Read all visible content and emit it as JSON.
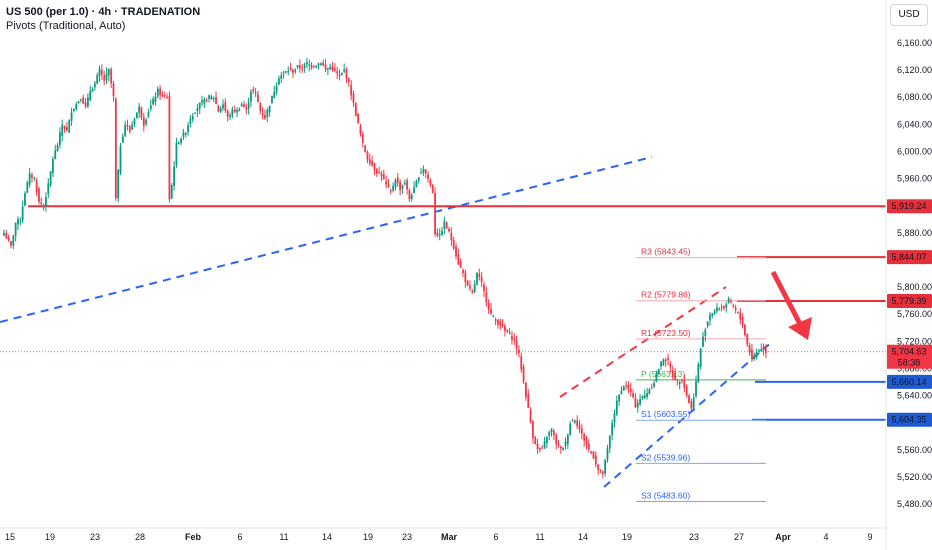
{
  "header": {
    "symbol": "US 500 (per 1.0) · 4h · TRADENATION",
    "indicator": "Pivots (Traditional, Auto)",
    "currency_button": "USD"
  },
  "colors": {
    "up": "#089981",
    "down": "#f23645",
    "red_line": "#e5303c",
    "blue_line": "#2962ff",
    "blue_label": "#1e5ad2",
    "red_label": "#e5303c",
    "pivot_red": "#f7a9b0",
    "pivot_green": "#4caf50",
    "pivot_blue": "#7fa7f0",
    "arrow": "#f23645"
  },
  "chart_data": {
    "type": "candlestick",
    "y_axis": {
      "ticks": [
        "6,160.00",
        "6,120.00",
        "6,080.00",
        "6,040.00",
        "6,000.00",
        "5,960.00",
        "5,920.00",
        "5,880.00",
        "5,840.00",
        "5,800.00",
        "5,760.00",
        "5,720.00",
        "5,680.00",
        "5,640.00",
        "5,600.00",
        "5,560.00",
        "5,520.00",
        "5,480.00"
      ],
      "tick_values": [
        6160,
        6120,
        6080,
        6040,
        6000,
        5960,
        5920,
        5880,
        5840,
        5800,
        5760,
        5720,
        5680,
        5640,
        5600,
        5560,
        5520,
        5480
      ],
      "range": [
        5455,
        6188
      ]
    },
    "x_axis": {
      "ticks": [
        "15",
        "19",
        "23",
        "28",
        "Feb",
        "6",
        "11",
        "14",
        "19",
        "23",
        "Mar",
        "6",
        "11",
        "14",
        "19",
        "23",
        "27",
        "Apr",
        "4",
        "9"
      ],
      "tick_bold": [
        false,
        false,
        false,
        false,
        true,
        false,
        false,
        false,
        false,
        false,
        true,
        false,
        false,
        false,
        false,
        false,
        false,
        true,
        false,
        false
      ]
    },
    "last_price": {
      "value": "5,704.63",
      "countdown": "58:38",
      "numeric": 5704.63
    },
    "levels": [
      {
        "label": "5,919.24",
        "value": 5919.24,
        "style": "red"
      },
      {
        "label": "5,844.07",
        "value": 5844.07,
        "style": "red"
      },
      {
        "label": "5,779.39",
        "value": 5779.39,
        "style": "red"
      },
      {
        "label": "5,660.14",
        "value": 5660.14,
        "style": "blue"
      },
      {
        "label": "5,604.35",
        "value": 5604.35,
        "style": "blue"
      }
    ],
    "pivots": [
      {
        "name": "R3",
        "text": "R3 (5843.45)",
        "value": 5843.45,
        "color": "red"
      },
      {
        "name": "R2",
        "text": "R2 (5779.86)",
        "value": 5779.86,
        "color": "red"
      },
      {
        "name": "R1",
        "text": "R1 (5723.50)",
        "value": 5723.5,
        "color": "red"
      },
      {
        "name": "P",
        "text": "P (5663.13)",
        "value": 5663.13,
        "color": "green"
      },
      {
        "name": "S1",
        "text": "S1 (5603.55)",
        "value": 5603.55,
        "color": "blue"
      },
      {
        "name": "S2",
        "text": "S2 (5539.96)",
        "value": 5539.96,
        "color": "blue"
      },
      {
        "name": "S3",
        "text": "S3 (5483.60)",
        "value": 5483.6,
        "color": "blue"
      }
    ],
    "trend_lines": [
      {
        "name": "long-dashed-support",
        "color": "blue",
        "dashed": true
      },
      {
        "name": "channel-lower",
        "color": "blue",
        "dashed": true
      },
      {
        "name": "channel-upper",
        "color": "red",
        "dashed": true
      }
    ],
    "arrow": {
      "direction": "down"
    },
    "close_path": [
      [
        0,
        5880
      ],
      [
        3,
        5860
      ],
      [
        5,
        5895
      ],
      [
        7,
        5900
      ],
      [
        9,
        5940
      ],
      [
        11,
        5965
      ],
      [
        13,
        5960
      ],
      [
        15,
        5925
      ],
      [
        17,
        5920
      ],
      [
        19,
        5950
      ],
      [
        21,
        5990
      ],
      [
        23,
        6010
      ],
      [
        25,
        6040
      ],
      [
        27,
        6030
      ],
      [
        29,
        6060
      ],
      [
        31,
        6070
      ],
      [
        33,
        6080
      ],
      [
        35,
        6065
      ],
      [
        37,
        6090
      ],
      [
        39,
        6100
      ],
      [
        41,
        6120
      ],
      [
        43,
        6105
      ],
      [
        45,
        6120
      ],
      [
        47,
        6080
      ],
      [
        48,
        5930
      ],
      [
        50,
        6010
      ],
      [
        52,
        6040
      ],
      [
        54,
        6030
      ],
      [
        56,
        6050
      ],
      [
        58,
        6065
      ],
      [
        60,
        6040
      ],
      [
        62,
        6060
      ],
      [
        64,
        6075
      ],
      [
        66,
        6090
      ],
      [
        68,
        6080
      ],
      [
        70,
        6080
      ],
      [
        71,
        5930
      ],
      [
        72,
        5950
      ],
      [
        74,
        6010
      ],
      [
        76,
        6020
      ],
      [
        78,
        6030
      ],
      [
        80,
        6050
      ],
      [
        82,
        6060
      ],
      [
        84,
        6070
      ],
      [
        86,
        6075
      ],
      [
        88,
        6080
      ],
      [
        90,
        6080
      ],
      [
        92,
        6060
      ],
      [
        94,
        6070
      ],
      [
        96,
        6050
      ],
      [
        98,
        6060
      ],
      [
        100,
        6060
      ],
      [
        102,
        6070
      ],
      [
        104,
        6060
      ],
      [
        106,
        6090
      ],
      [
        108,
        6085
      ],
      [
        110,
        6060
      ],
      [
        112,
        6050
      ],
      [
        114,
        6070
      ],
      [
        116,
        6090
      ],
      [
        118,
        6110
      ],
      [
        120,
        6115
      ],
      [
        122,
        6120
      ],
      [
        124,
        6118
      ],
      [
        126,
        6125
      ],
      [
        128,
        6123
      ],
      [
        130,
        6130
      ],
      [
        132,
        6126
      ],
      [
        134,
        6128
      ],
      [
        136,
        6132
      ],
      [
        138,
        6120
      ],
      [
        140,
        6125
      ],
      [
        142,
        6118
      ],
      [
        144,
        6110
      ],
      [
        146,
        6120
      ],
      [
        148,
        6100
      ],
      [
        150,
        6070
      ],
      [
        152,
        6040
      ],
      [
        154,
        6010
      ],
      [
        156,
        5990
      ],
      [
        158,
        5980
      ],
      [
        160,
        5970
      ],
      [
        162,
        5965
      ],
      [
        164,
        5950
      ],
      [
        166,
        5940
      ],
      [
        168,
        5960
      ],
      [
        170,
        5945
      ],
      [
        172,
        5955
      ],
      [
        174,
        5930
      ],
      [
        176,
        5945
      ],
      [
        178,
        5965
      ],
      [
        180,
        5975
      ],
      [
        182,
        5960
      ],
      [
        184,
        5940
      ],
      [
        185,
        5880
      ],
      [
        187,
        5875
      ],
      [
        189,
        5895
      ],
      [
        191,
        5880
      ],
      [
        193,
        5860
      ],
      [
        195,
        5835
      ],
      [
        197,
        5820
      ],
      [
        199,
        5800
      ],
      [
        201,
        5790
      ],
      [
        203,
        5820
      ],
      [
        205,
        5805
      ],
      [
        207,
        5780
      ],
      [
        209,
        5760
      ],
      [
        211,
        5750
      ],
      [
        213,
        5745
      ],
      [
        215,
        5735
      ],
      [
        217,
        5730
      ],
      [
        219,
        5720
      ],
      [
        221,
        5700
      ],
      [
        223,
        5660
      ],
      [
        225,
        5620
      ],
      [
        227,
        5580
      ],
      [
        229,
        5560
      ],
      [
        231,
        5560
      ],
      [
        233,
        5580
      ],
      [
        235,
        5590
      ],
      [
        237,
        5570
      ],
      [
        239,
        5560
      ],
      [
        241,
        5570
      ],
      [
        243,
        5600
      ],
      [
        245,
        5605
      ],
      [
        247,
        5590
      ],
      [
        249,
        5575
      ],
      [
        251,
        5560
      ],
      [
        253,
        5550
      ],
      [
        255,
        5530
      ],
      [
        257,
        5525
      ],
      [
        259,
        5560
      ],
      [
        261,
        5600
      ],
      [
        263,
        5630
      ],
      [
        265,
        5650
      ],
      [
        267,
        5655
      ],
      [
        269,
        5645
      ],
      [
        271,
        5625
      ],
      [
        273,
        5635
      ],
      [
        275,
        5640
      ],
      [
        277,
        5650
      ],
      [
        279,
        5660
      ],
      [
        281,
        5680
      ],
      [
        283,
        5695
      ],
      [
        285,
        5690
      ],
      [
        287,
        5670
      ],
      [
        289,
        5660
      ],
      [
        291,
        5665
      ],
      [
        293,
        5640
      ],
      [
        295,
        5620
      ],
      [
        297,
        5660
      ],
      [
        299,
        5710
      ],
      [
        301,
        5740
      ],
      [
        303,
        5760
      ],
      [
        305,
        5765
      ],
      [
        307,
        5770
      ],
      [
        309,
        5770
      ],
      [
        311,
        5780
      ],
      [
        313,
        5770
      ],
      [
        315,
        5760
      ],
      [
        317,
        5745
      ],
      [
        319,
        5715
      ],
      [
        321,
        5695
      ],
      [
        323,
        5705
      ],
      [
        325,
        5710
      ],
      [
        327,
        5705
      ]
    ]
  }
}
